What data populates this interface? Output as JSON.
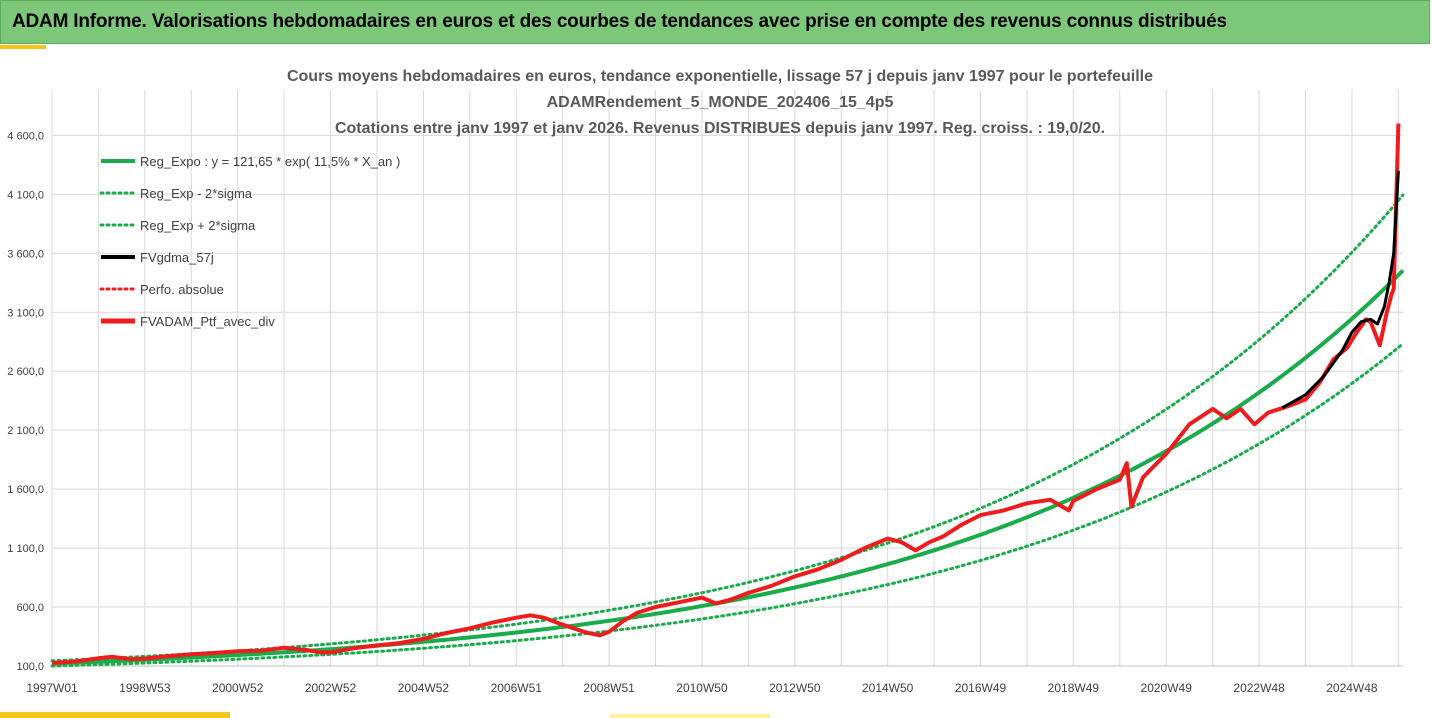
{
  "header": {
    "title": "ADAM Informe. Valorisations hebdomadaires en euros et des courbes de tendances avec prise en compte des revenus connus distribués"
  },
  "colors": {
    "header_bg": "#7dc77a",
    "accent": "#f5c518",
    "trend": "#1aab4a",
    "smooth": "#000000",
    "portfolio": "#ee1c1c",
    "grid": "#d9d9d9"
  },
  "chart_data": {
    "type": "line",
    "title_lines": [
      "Cours moyens hebdomadaires  en euros, tendance exponentielle, lissage 57 j depuis janv 1997 pour le portefeuille",
      "ADAMRendement_5_MONDE_202406_15_4p5",
      "Cotations entre janv 1997 et janv 2026. Revenus DISTRIBUES depuis janv 1997. Reg. croiss. : 19,0/20."
    ],
    "y_ticks": [
      "100,0",
      "600,0",
      "1 100,0",
      "1 600,0",
      "2 100,0",
      "2 600,0",
      "3 100,0",
      "3 600,0",
      "4 100,0",
      "4 600,0"
    ],
    "x_ticks": [
      "1997W01",
      "1998W53",
      "2000W52",
      "2002W52",
      "2004W52",
      "2006W51",
      "2008W51",
      "2010W50",
      "2012W50",
      "2014W50",
      "2016W49",
      "2018W49",
      "2020W49",
      "2022W48",
      "2024W48"
    ],
    "ylim": [
      100,
      4900
    ],
    "xlim": [
      1997.0,
      2026.1
    ],
    "grid": true,
    "legend_position": "top-left",
    "regression": {
      "a": 121.65,
      "b": 0.115,
      "sigma_low_factor": 0.82,
      "sigma_high_factor": 1.185
    },
    "legend": [
      {
        "label": "Reg_Expo : y = 121,65 * exp( 11,5% *  X_an )",
        "style": "solid",
        "color": "#1aab4a"
      },
      {
        "label": "Reg_Exp - 2*sigma",
        "style": "dotted",
        "color": "#1aab4a"
      },
      {
        "label": "Reg_Exp + 2*sigma",
        "style": "dotted",
        "color": "#1aab4a"
      },
      {
        "label": "FVgdma_57j",
        "style": "solid",
        "color": "#000000"
      },
      {
        "label": "Perfo. absolue",
        "style": "dotted",
        "color": "#ee1c1c"
      },
      {
        "label": "FVADAM_Ptf_avec_div",
        "style": "thick",
        "color": "#ee1c1c"
      }
    ],
    "series": [
      {
        "name": "FVADAM_Ptf_avec_div",
        "x": [
          1997.0,
          1997.5,
          1998.0,
          1998.3,
          1998.7,
          1999.0,
          1999.5,
          2000.0,
          2000.5,
          2001.0,
          2001.5,
          2002.0,
          2002.5,
          2002.8,
          2003.0,
          2003.5,
          2004.0,
          2004.5,
          2005.0,
          2005.5,
          2006.0,
          2006.5,
          2007.0,
          2007.3,
          2007.6,
          2008.0,
          2008.5,
          2008.8,
          2009.0,
          2009.3,
          2009.6,
          2010.0,
          2010.5,
          2011.0,
          2011.3,
          2011.6,
          2012.0,
          2012.5,
          2013.0,
          2013.5,
          2014.0,
          2014.5,
          2015.0,
          2015.3,
          2015.6,
          2015.9,
          2016.2,
          2016.6,
          2017.0,
          2017.5,
          2018.0,
          2018.5,
          2018.9,
          2019.0,
          2019.5,
          2020.0,
          2020.15,
          2020.25,
          2020.5,
          2021.0,
          2021.5,
          2022.0,
          2022.3,
          2022.6,
          2022.9,
          2023.2,
          2023.6,
          2024.0,
          2024.3,
          2024.6,
          2024.9,
          2025.1,
          2025.2,
          2025.3,
          2025.4,
          2025.6,
          2025.75,
          2025.8,
          2025.85,
          2025.9,
          2026.0
        ],
        "values": [
          125,
          138,
          165,
          178,
          158,
          163,
          184,
          200,
          210,
          225,
          230,
          255,
          235,
          215,
          215,
          250,
          275,
          295,
          330,
          380,
          420,
          470,
          510,
          530,
          510,
          450,
          385,
          360,
          390,
          480,
          550,
          600,
          640,
          680,
          630,
          660,
          720,
          780,
          860,
          920,
          1000,
          1100,
          1180,
          1150,
          1080,
          1150,
          1200,
          1300,
          1380,
          1420,
          1480,
          1510,
          1420,
          1500,
          1600,
          1680,
          1820,
          1450,
          1700,
          1900,
          2150,
          2280,
          2200,
          2280,
          2150,
          2250,
          2300,
          2360,
          2500,
          2700,
          2800,
          2930,
          2980,
          3040,
          3020,
          2820,
          3100,
          3170,
          3250,
          3300,
          4700
        ]
      },
      {
        "name": "FVgdma_57j",
        "x": [
          2023.5,
          2024.0,
          2024.4,
          2024.8,
          2025.0,
          2025.2,
          2025.4,
          2025.55,
          2025.7,
          2025.8,
          2025.9,
          2026.0
        ],
        "values": [
          2290,
          2400,
          2560,
          2780,
          2930,
          3020,
          3040,
          3000,
          3150,
          3350,
          3600,
          4300
        ]
      }
    ]
  }
}
